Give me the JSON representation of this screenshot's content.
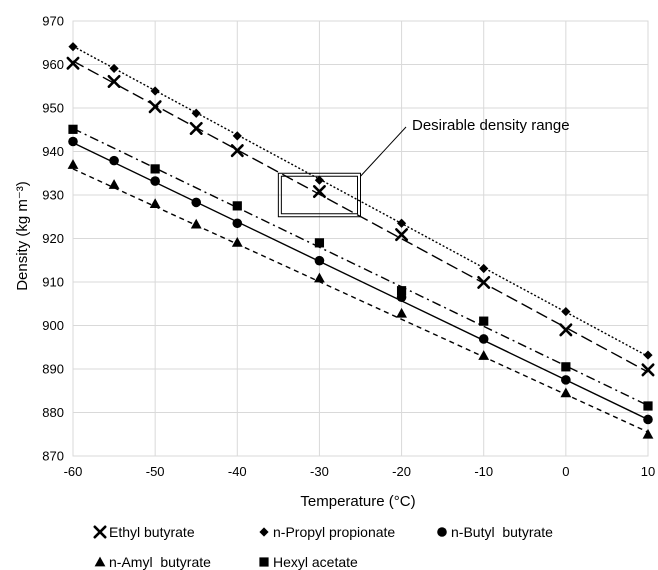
{
  "chart_data": {
    "type": "line",
    "xlabel": "Temperature (°C)",
    "ylabel": "Density (kg m⁻³)",
    "xlim": [
      -60,
      10
    ],
    "ylim": [
      870,
      970
    ],
    "xticks": [
      "-60",
      "-50",
      "-40",
      "-30",
      "-20",
      "-10",
      "0",
      "10"
    ],
    "yticks": [
      "870",
      "880",
      "890",
      "900",
      "910",
      "920",
      "930",
      "940",
      "950",
      "960",
      "970"
    ],
    "grid": true,
    "legend_position": "bottom",
    "annotation": {
      "text": "Desirable density range",
      "x_range": [
        -35,
        -25
      ],
      "y_range": [
        925,
        935
      ]
    },
    "series": [
      {
        "name": "Ethyl butyrate",
        "marker": "x",
        "line_style": "long-dash",
        "x": [
          -60,
          -55,
          -50,
          -45,
          -40,
          -30,
          -20,
          -10,
          0,
          10
        ],
        "y": [
          960.3,
          956.1,
          950.3,
          945.3,
          940.2,
          930.8,
          920.9,
          909.9,
          899.0,
          889.8
        ],
        "fit": [
          [
            -60,
            960.8
          ],
          [
            10,
            889.3
          ]
        ]
      },
      {
        "name": "n-Propyl propionate",
        "marker": "diamond",
        "line_style": "dotted",
        "x": [
          -60,
          -55,
          -50,
          -45,
          -40,
          -30,
          -20,
          -10,
          0,
          10
        ],
        "y": [
          964.1,
          959.1,
          953.9,
          948.8,
          943.6,
          933.4,
          923.5,
          913.1,
          903.2,
          893.2
        ],
        "fit": [
          [
            -60,
            964.2
          ],
          [
            10,
            892.9
          ]
        ]
      },
      {
        "name": "n-Butyl  butyrate",
        "marker": "circle",
        "line_style": "solid",
        "x": [
          -60,
          -55,
          -50,
          -45,
          -40,
          -30,
          -20,
          -10,
          0,
          10
        ],
        "y": [
          942.3,
          937.9,
          933.2,
          928.3,
          923.5,
          914.9,
          906.5,
          896.9,
          887.5,
          878.4
        ],
        "fit": [
          [
            -60,
            942.0
          ],
          [
            10,
            878.4
          ]
        ]
      },
      {
        "name": "n-Amyl  butyrate",
        "marker": "triangle",
        "line_style": "short-dash",
        "x": [
          -60,
          -55,
          -50,
          -45,
          -40,
          -30,
          -20,
          -10,
          0,
          10
        ],
        "y": [
          937.0,
          932.4,
          928.0,
          923.3,
          919.1,
          910.9,
          902.8,
          893.1,
          884.5,
          875.0
        ],
        "fit": [
          [
            -60,
            936.0
          ],
          [
            10,
            875.5
          ]
        ]
      },
      {
        "name": "Hexyl acetate",
        "marker": "square",
        "line_style": "dash-dot",
        "x": [
          -60,
          -50,
          -40,
          -30,
          -20,
          -10,
          0,
          10
        ],
        "y": [
          945.1,
          936.0,
          927.5,
          919.0,
          908.0,
          901.0,
          890.5,
          881.5
        ],
        "fit": [
          [
            -60,
            945.3
          ],
          [
            10,
            881.6
          ]
        ]
      }
    ]
  }
}
